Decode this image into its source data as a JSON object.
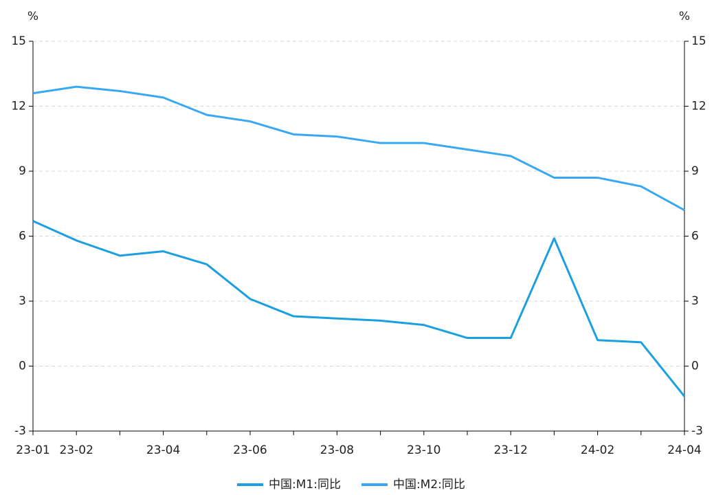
{
  "chart_data": {
    "type": "line",
    "y_unit": "%",
    "y2_unit": "%",
    "categories": [
      "23-01",
      "23-02",
      null,
      "23-04",
      null,
      "23-06",
      null,
      "23-08",
      null,
      "23-10",
      null,
      "23-12",
      null,
      "24-02",
      null,
      "24-04"
    ],
    "series": [
      {
        "name": "中国:M1:同比",
        "color": "#1a9fe0",
        "values": [
          6.7,
          5.8,
          5.1,
          5.3,
          4.7,
          3.1,
          2.3,
          2.2,
          2.1,
          1.9,
          1.3,
          1.3,
          5.9,
          1.2,
          1.1,
          -1.4
        ]
      },
      {
        "name": "中国:M2:同比",
        "color": "#38a8f5",
        "values": [
          12.6,
          12.9,
          12.7,
          12.4,
          11.6,
          11.3,
          10.7,
          10.6,
          10.3,
          10.3,
          10.0,
          9.7,
          8.7,
          8.7,
          8.3,
          7.2
        ]
      }
    ],
    "ylim": [
      -3,
      15
    ],
    "yticks": [
      -3,
      0,
      3,
      6,
      9,
      12,
      15
    ],
    "y2lim": [
      -3,
      15
    ],
    "y2ticks": [
      -3,
      0,
      3,
      6,
      9,
      12,
      15
    ],
    "grid": true,
    "legend": "bottom"
  }
}
